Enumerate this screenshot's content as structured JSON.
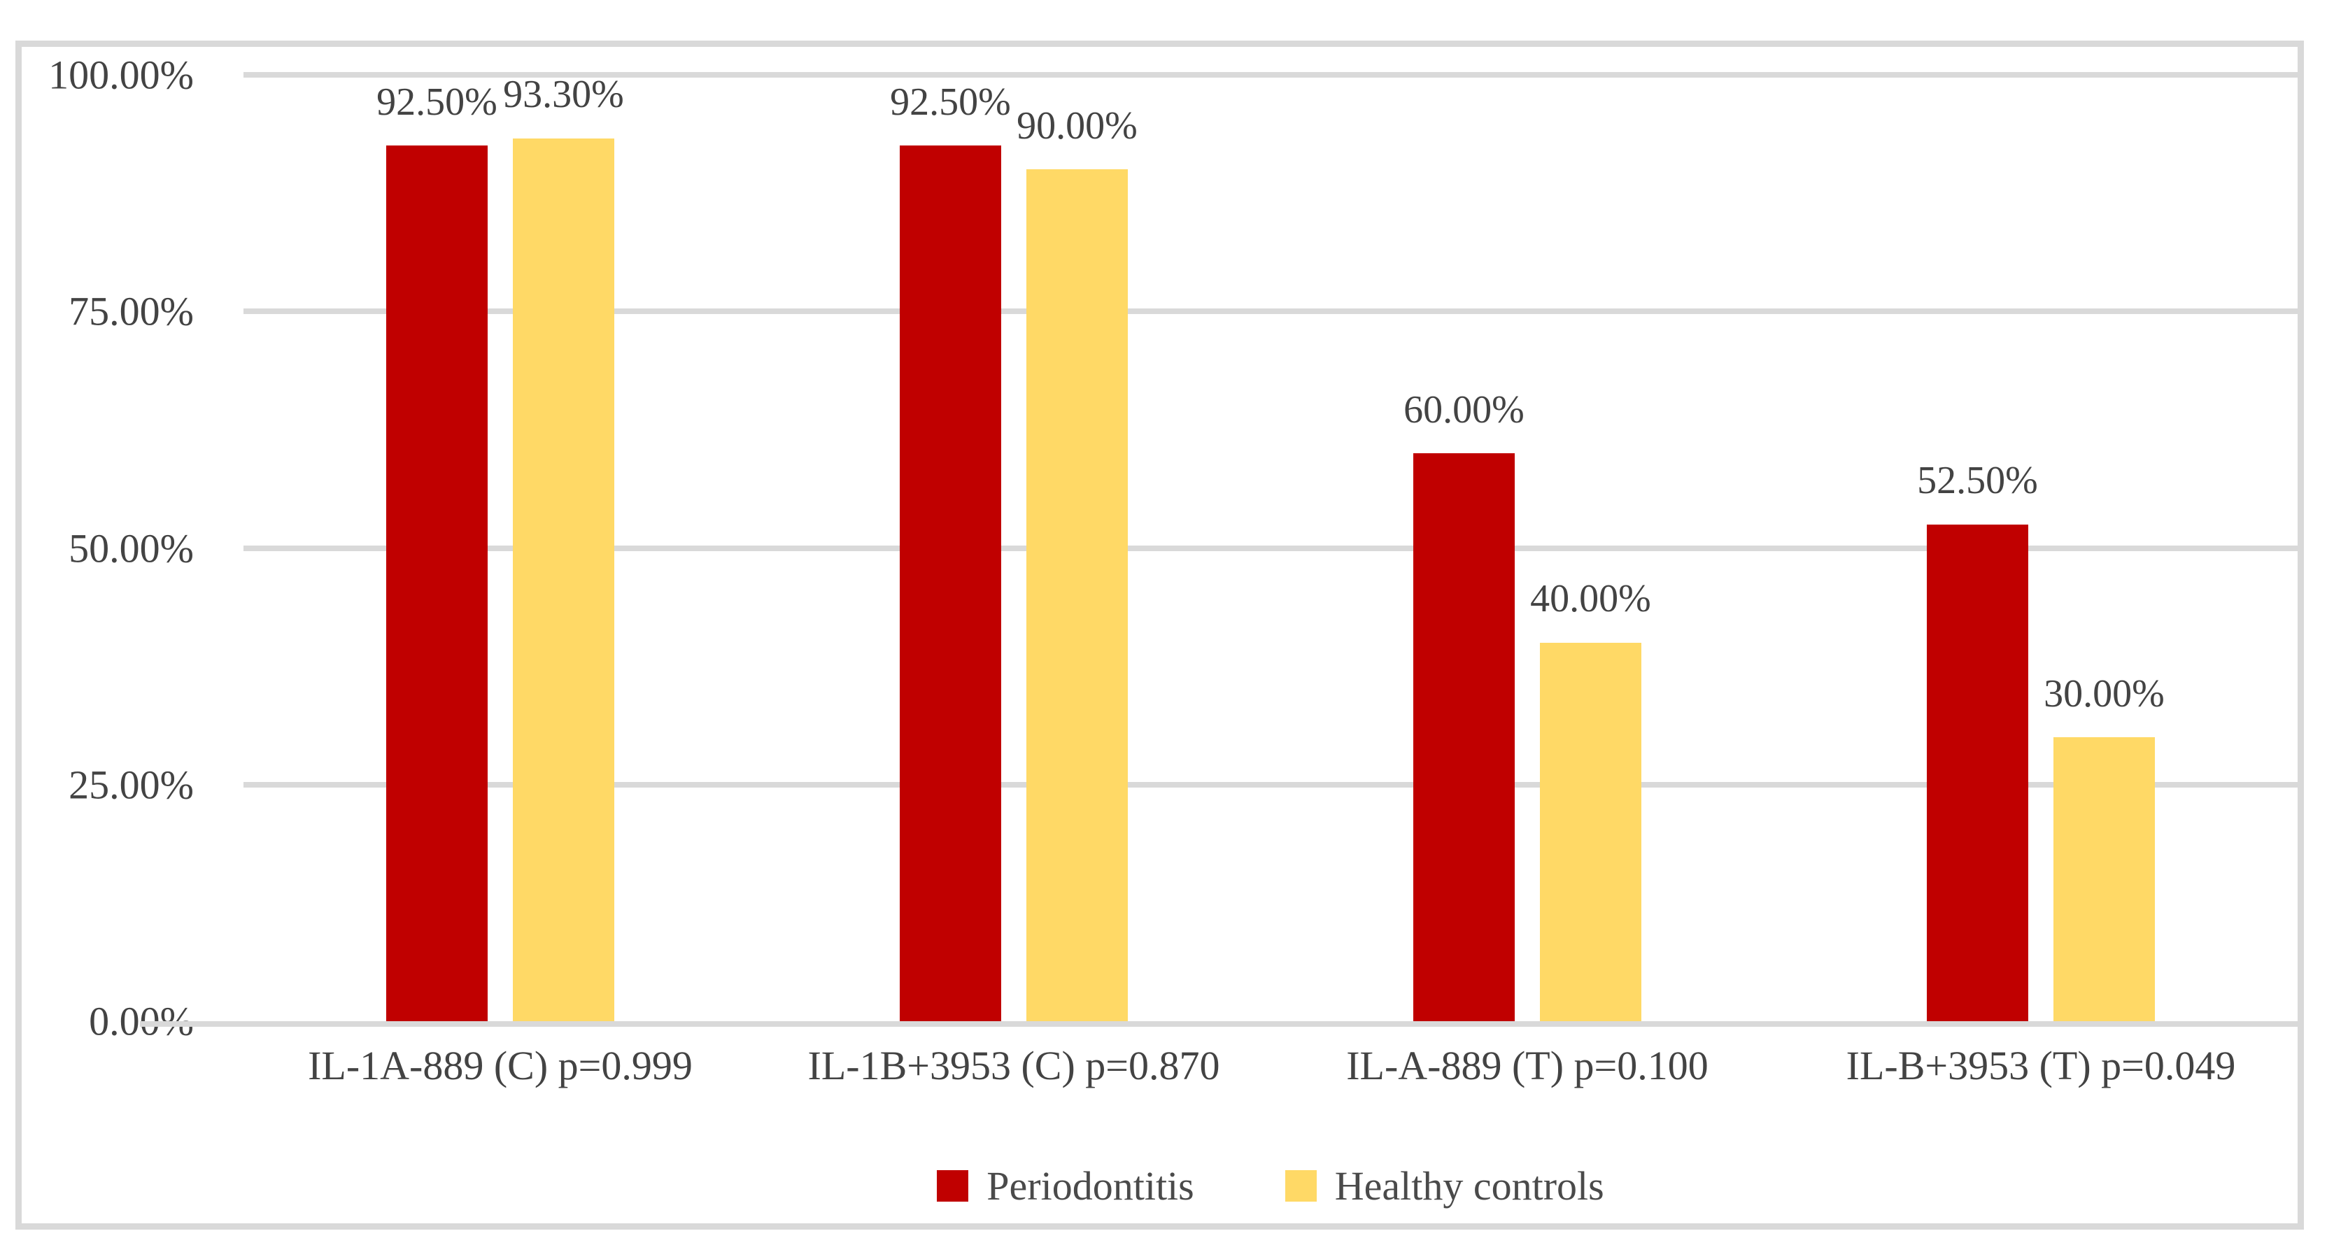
{
  "chart_data": {
    "type": "bar",
    "title": "",
    "xlabel": "",
    "ylabel": "",
    "categories": [
      "IL-1A-889 (C) p=0.999",
      "IL-1B+3953 (C) p=0.870",
      "IL-A-889 (T) p=0.100",
      "IL-B+3953 (T) p=0.049"
    ],
    "series": [
      {
        "name": "Periodontitis",
        "color": "#C00000",
        "values": [
          92.5,
          92.5,
          60,
          52.5
        ],
        "data_labels": [
          "92.50%",
          "92.50%",
          "60.00%",
          "52.50%"
        ]
      },
      {
        "name": "Healthy controls",
        "color": "#FFD966",
        "values": [
          93.3,
          90,
          40,
          30
        ],
        "data_labels": [
          "93.30%",
          "90.00%",
          "40.00%",
          "30.00%"
        ]
      }
    ],
    "y_axis": {
      "min": 0,
      "max": 100,
      "tick_values": [
        0,
        25,
        50,
        75,
        100
      ],
      "tick_labels": [
        "0.00%",
        "25.00%",
        "50.00%",
        "75.00%",
        "100.00%"
      ]
    },
    "grid": true,
    "legend_position": "bottom"
  },
  "style": {
    "bar_red": "#C00000",
    "bar_yellow": "#FFD966",
    "grid_color": "#D9D9D9",
    "frame_color": "#D9D9D9",
    "text_color": "#434343",
    "background": "#FFFFFF"
  }
}
